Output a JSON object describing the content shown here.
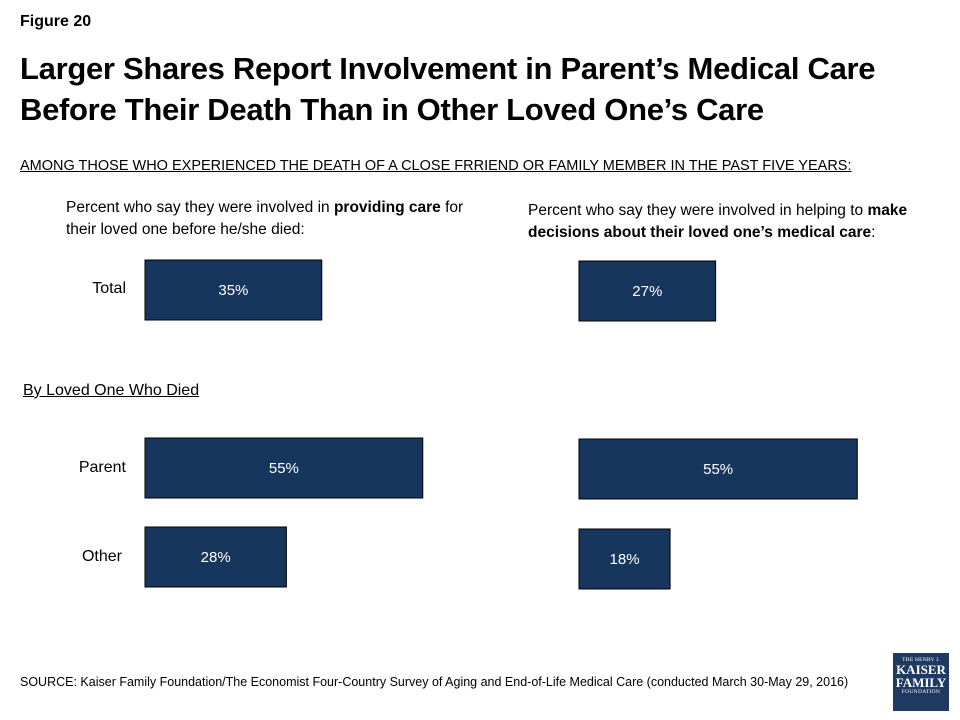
{
  "figure_label": "Figure 20",
  "title": "Larger Shares Report Involvement in Parent’s Medical Care Before Their Death Than in Other Loved One’s Care",
  "subhead": "AMONG THOSE WHO EXPERIENCED THE DEATH OF A CLOSE FRRIEND OR FAMILY MEMBER IN THE PAST FIVE YEARS:",
  "left_panel": {
    "title_before": "Percent who say they were involved in ",
    "title_bold": "providing care",
    "title_after": " for their loved one before he/she died:"
  },
  "right_panel": {
    "title_before": "Percent who say they were involved in helping to ",
    "title_bold": "make decisions about their loved one’s medical care",
    "title_after": ":"
  },
  "row_labels": {
    "total": "Total",
    "parent": "Parent",
    "other": "Other"
  },
  "section_heading": "By Loved One Who Died",
  "source": "SOURCE: Kaiser Family Foundation/The Economist Four-Country Survey of Aging and End-of-Life Medical Care (conducted March 30-May 29, 2016)",
  "logo": {
    "line1": "THE HENRY J.",
    "line2": "KAISER",
    "line3": "FAMILY",
    "line4": "FOUNDATION"
  },
  "colors": {
    "bar_fill": "#17365d",
    "bar_label": "#ffffff"
  },
  "chart_data": [
    {
      "type": "bar",
      "orientation": "horizontal",
      "categories": [
        "Total",
        "Parent",
        "Other"
      ],
      "values": [
        35,
        55,
        28
      ],
      "value_labels": [
        "35%",
        "55%",
        "28%"
      ],
      "unit": "%",
      "xlim": [
        0,
        100
      ]
    },
    {
      "type": "bar",
      "orientation": "horizontal",
      "categories": [
        "Total",
        "Parent",
        "Other"
      ],
      "values": [
        27,
        55,
        18
      ],
      "value_labels": [
        "27%",
        "55%",
        "18%"
      ],
      "unit": "%",
      "xlim": [
        0,
        100
      ]
    }
  ]
}
